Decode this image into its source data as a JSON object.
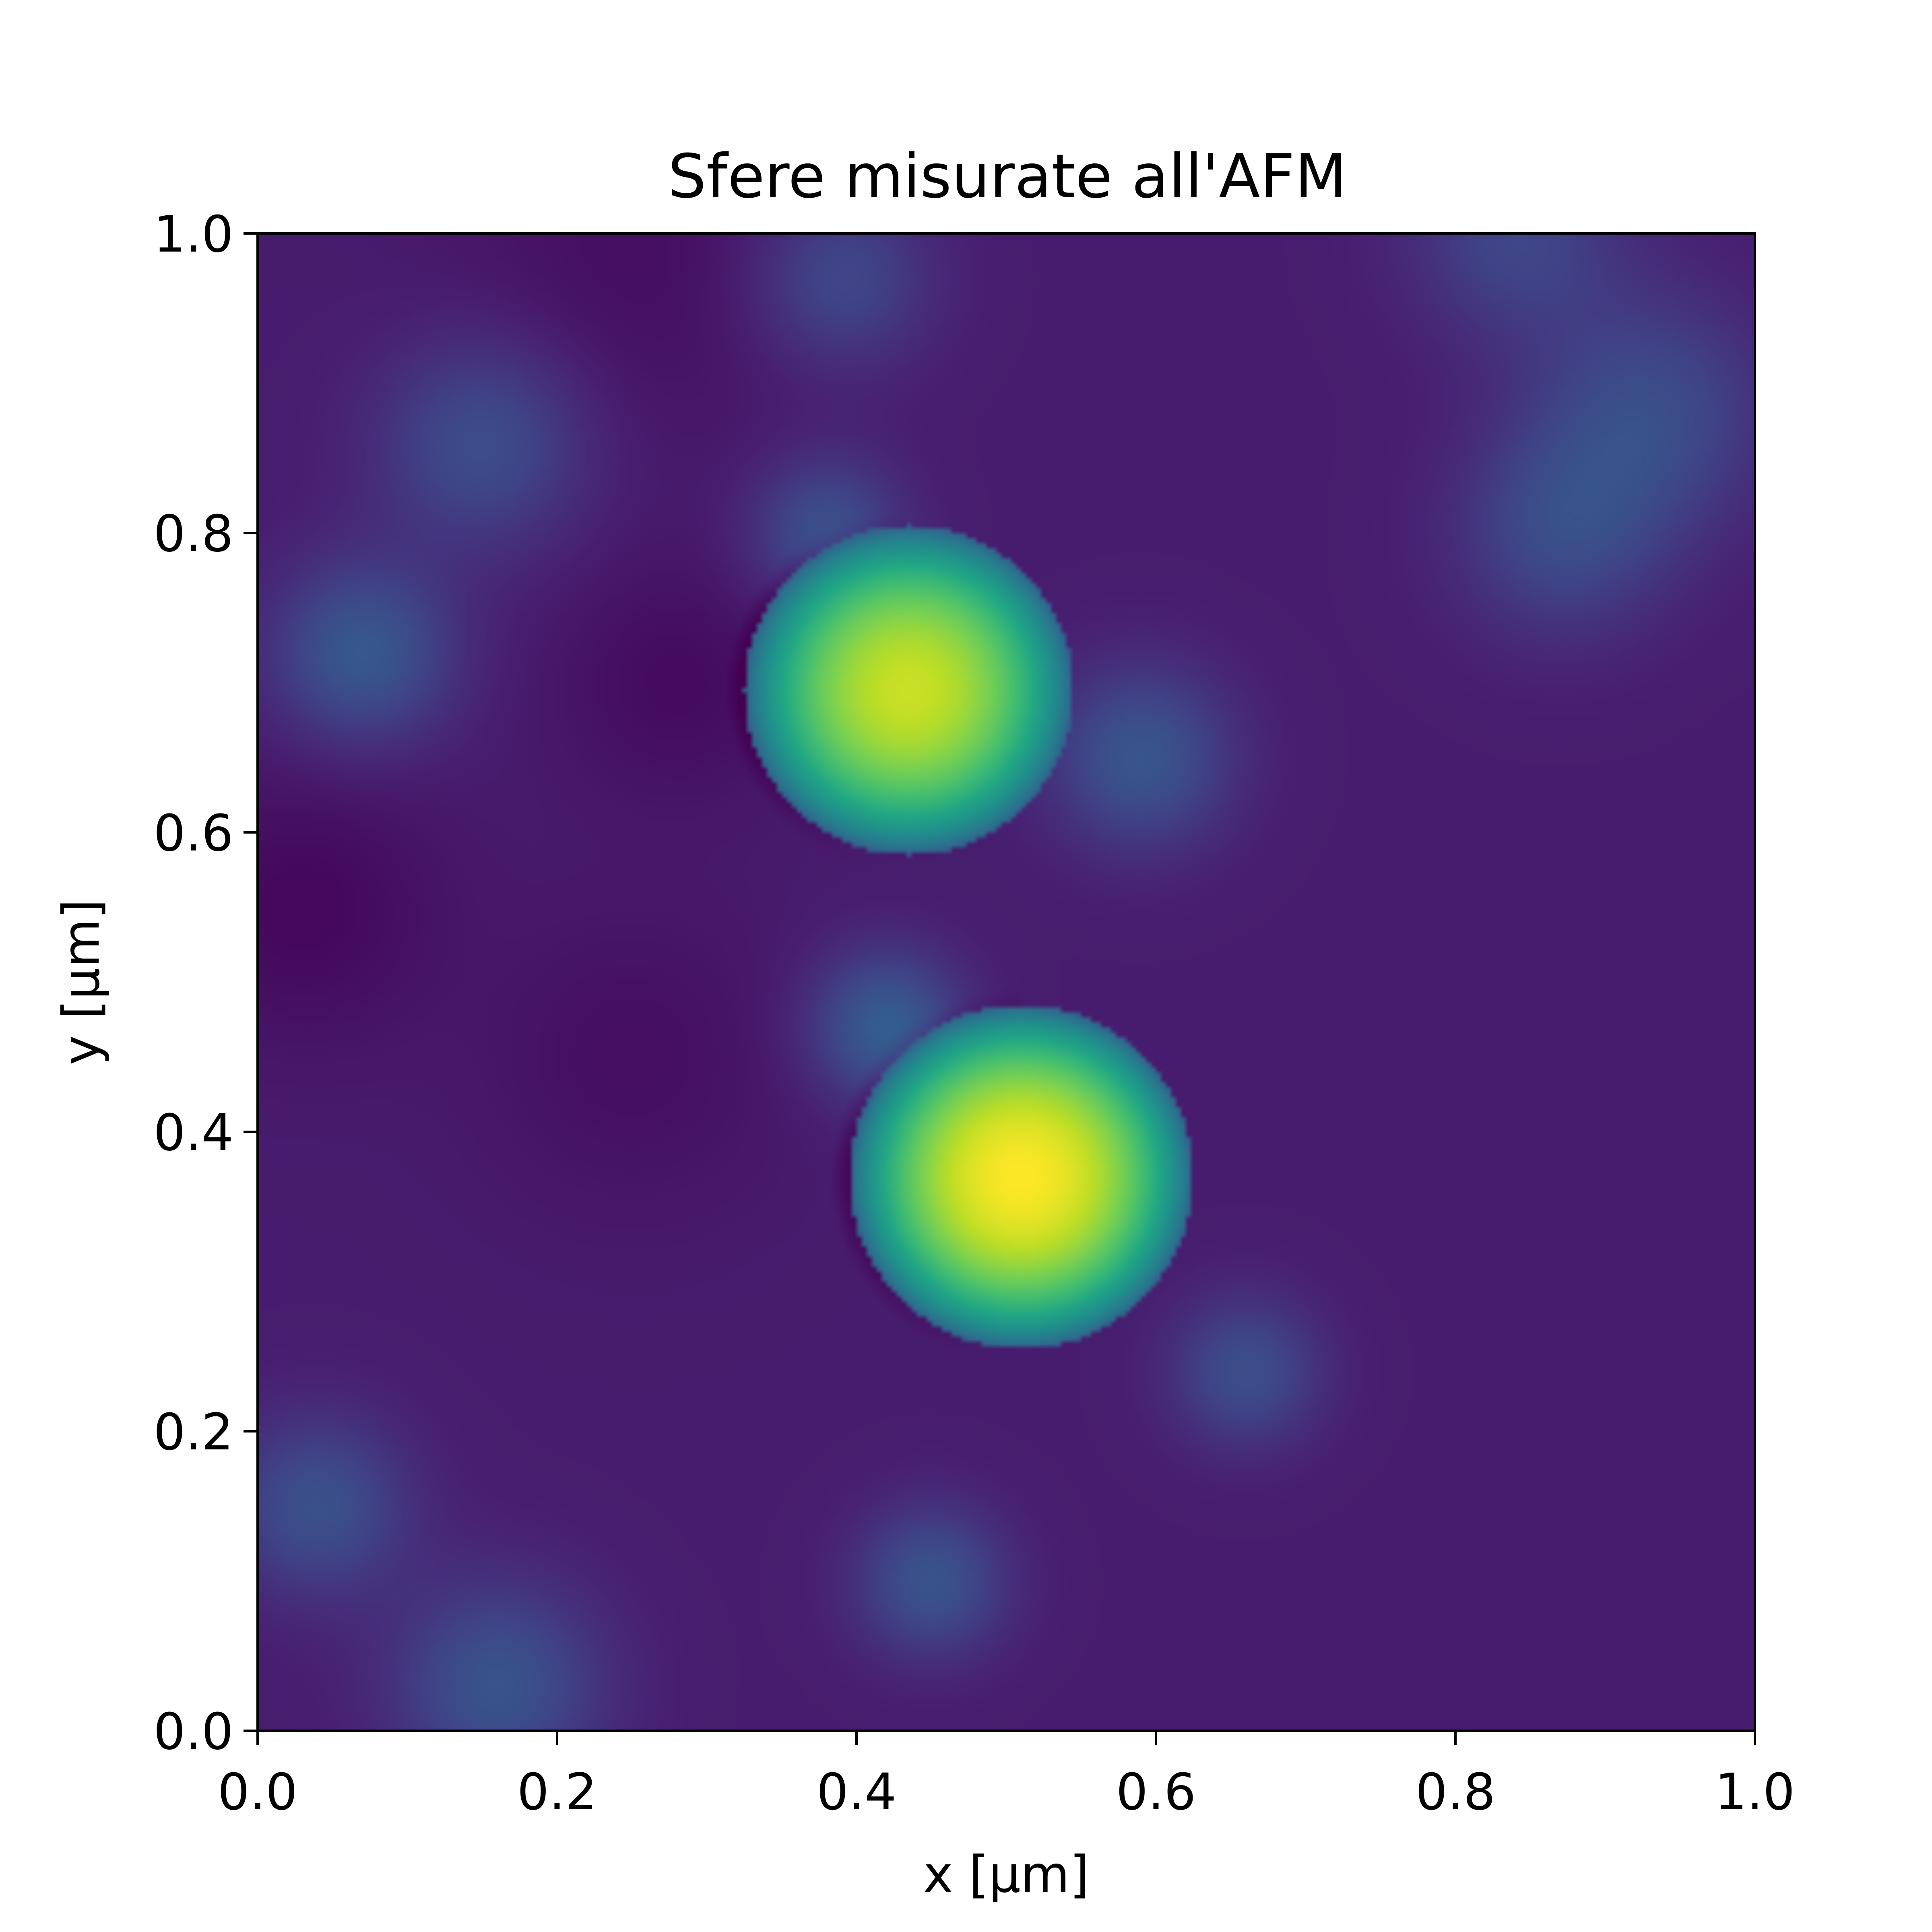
{
  "chart_data": {
    "type": "heatmap",
    "title": "Sfere misurate all'AFM",
    "xlabel": "x [μm]",
    "ylabel": "y [μm]",
    "xlim": [
      0.0,
      1.0
    ],
    "ylim": [
      0.0,
      1.0
    ],
    "x_ticks": [
      "0.0",
      "0.2",
      "0.4",
      "0.6",
      "0.8",
      "1.0"
    ],
    "y_ticks": [
      "0.0",
      "0.2",
      "0.4",
      "0.6",
      "0.8",
      "1.0"
    ],
    "colormap": "viridis",
    "grid": false,
    "legend": "none",
    "background_level": 0.08,
    "features": [
      {
        "name": "sphere",
        "x": 0.435,
        "y": 0.695,
        "radius": 0.11,
        "peak": 0.92
      },
      {
        "name": "sphere",
        "x": 0.51,
        "y": 0.37,
        "radius": 0.115,
        "peak": 1.0
      }
    ],
    "background_blobs": [
      {
        "x": 0.07,
        "y": 0.72,
        "r": 0.06,
        "level": 0.2
      },
      {
        "x": 0.15,
        "y": 0.86,
        "r": 0.07,
        "level": 0.16
      },
      {
        "x": 0.38,
        "y": 0.8,
        "r": 0.05,
        "level": 0.17
      },
      {
        "x": 0.59,
        "y": 0.65,
        "r": 0.06,
        "level": 0.19
      },
      {
        "x": 0.42,
        "y": 0.47,
        "r": 0.05,
        "level": 0.22
      },
      {
        "x": 0.04,
        "y": 0.15,
        "r": 0.06,
        "level": 0.17
      },
      {
        "x": 0.16,
        "y": 0.03,
        "r": 0.07,
        "level": 0.18
      },
      {
        "x": 0.45,
        "y": 0.1,
        "r": 0.05,
        "level": 0.18
      },
      {
        "x": 0.66,
        "y": 0.24,
        "r": 0.05,
        "level": 0.16
      },
      {
        "x": 0.93,
        "y": 0.88,
        "r": 0.08,
        "level": 0.15
      },
      {
        "x": 0.87,
        "y": 0.8,
        "r": 0.07,
        "level": 0.14
      },
      {
        "x": 0.39,
        "y": 0.97,
        "r": 0.06,
        "level": 0.14
      },
      {
        "x": 0.84,
        "y": 1.0,
        "r": 0.07,
        "level": 0.13
      }
    ],
    "dark_regions": [
      {
        "x": 0.03,
        "y": 0.55,
        "r": 0.09,
        "level": -0.06
      },
      {
        "x": 0.25,
        "y": 0.45,
        "r": 0.1,
        "level": -0.04
      },
      {
        "x": 0.28,
        "y": 0.7,
        "r": 0.08,
        "level": -0.05
      },
      {
        "x": 0.25,
        "y": 0.98,
        "r": 0.12,
        "level": -0.04
      }
    ]
  }
}
